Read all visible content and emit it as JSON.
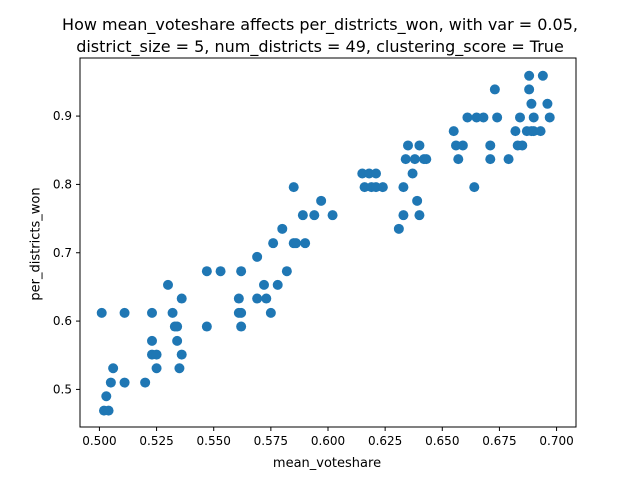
{
  "chart_data": {
    "type": "scatter",
    "title_line1": "How mean_voteshare affects per_districts_won, with var = 0.05,",
    "title_line2": "district_size = 5, num_districts = 49, clustering_score = True",
    "xlabel": "mean_voteshare",
    "ylabel": "per_districts_won",
    "xlim": [
      0.4915,
      0.7085
    ],
    "ylim": [
      0.445,
      0.985
    ],
    "x_ticks": [
      0.5,
      0.525,
      0.55,
      0.575,
      0.6,
      0.625,
      0.65,
      0.675,
      0.7
    ],
    "x_tick_labels": [
      "0.500",
      "0.525",
      "0.550",
      "0.575",
      "0.600",
      "0.625",
      "0.650",
      "0.675",
      "0.700"
    ],
    "y_ticks": [
      0.5,
      0.6,
      0.7,
      0.8,
      0.9
    ],
    "y_tick_labels": [
      "0.5",
      "0.6",
      "0.7",
      "0.8",
      "0.9"
    ],
    "grid": false,
    "marker_color": "#1f77b4",
    "points": [
      {
        "x": 0.501,
        "y": 0.612
      },
      {
        "x": 0.502,
        "y": 0.469
      },
      {
        "x": 0.503,
        "y": 0.49
      },
      {
        "x": 0.504,
        "y": 0.469
      },
      {
        "x": 0.505,
        "y": 0.51
      },
      {
        "x": 0.506,
        "y": 0.531
      },
      {
        "x": 0.511,
        "y": 0.612
      },
      {
        "x": 0.511,
        "y": 0.51
      },
      {
        "x": 0.52,
        "y": 0.51
      },
      {
        "x": 0.523,
        "y": 0.551
      },
      {
        "x": 0.523,
        "y": 0.571
      },
      {
        "x": 0.523,
        "y": 0.612
      },
      {
        "x": 0.525,
        "y": 0.531
      },
      {
        "x": 0.525,
        "y": 0.551
      },
      {
        "x": 0.53,
        "y": 0.653
      },
      {
        "x": 0.532,
        "y": 0.612
      },
      {
        "x": 0.533,
        "y": 0.592
      },
      {
        "x": 0.534,
        "y": 0.571
      },
      {
        "x": 0.534,
        "y": 0.592
      },
      {
        "x": 0.535,
        "y": 0.531
      },
      {
        "x": 0.536,
        "y": 0.551
      },
      {
        "x": 0.536,
        "y": 0.633
      },
      {
        "x": 0.547,
        "y": 0.673
      },
      {
        "x": 0.547,
        "y": 0.592
      },
      {
        "x": 0.553,
        "y": 0.673
      },
      {
        "x": 0.561,
        "y": 0.633
      },
      {
        "x": 0.561,
        "y": 0.612
      },
      {
        "x": 0.562,
        "y": 0.673
      },
      {
        "x": 0.562,
        "y": 0.592
      },
      {
        "x": 0.562,
        "y": 0.612
      },
      {
        "x": 0.569,
        "y": 0.694
      },
      {
        "x": 0.569,
        "y": 0.633
      },
      {
        "x": 0.572,
        "y": 0.653
      },
      {
        "x": 0.573,
        "y": 0.633
      },
      {
        "x": 0.575,
        "y": 0.612
      },
      {
        "x": 0.576,
        "y": 0.714
      },
      {
        "x": 0.578,
        "y": 0.653
      },
      {
        "x": 0.58,
        "y": 0.735
      },
      {
        "x": 0.582,
        "y": 0.673
      },
      {
        "x": 0.585,
        "y": 0.796
      },
      {
        "x": 0.585,
        "y": 0.714
      },
      {
        "x": 0.586,
        "y": 0.714
      },
      {
        "x": 0.589,
        "y": 0.755
      },
      {
        "x": 0.59,
        "y": 0.714
      },
      {
        "x": 0.594,
        "y": 0.755
      },
      {
        "x": 0.597,
        "y": 0.776
      },
      {
        "x": 0.602,
        "y": 0.755
      },
      {
        "x": 0.615,
        "y": 0.816
      },
      {
        "x": 0.616,
        "y": 0.796
      },
      {
        "x": 0.618,
        "y": 0.816
      },
      {
        "x": 0.619,
        "y": 0.796
      },
      {
        "x": 0.621,
        "y": 0.816
      },
      {
        "x": 0.621,
        "y": 0.796
      },
      {
        "x": 0.624,
        "y": 0.796
      },
      {
        "x": 0.631,
        "y": 0.735
      },
      {
        "x": 0.633,
        "y": 0.755
      },
      {
        "x": 0.633,
        "y": 0.796
      },
      {
        "x": 0.634,
        "y": 0.837
      },
      {
        "x": 0.635,
        "y": 0.857
      },
      {
        "x": 0.637,
        "y": 0.816
      },
      {
        "x": 0.638,
        "y": 0.837
      },
      {
        "x": 0.639,
        "y": 0.776
      },
      {
        "x": 0.64,
        "y": 0.857
      },
      {
        "x": 0.64,
        "y": 0.755
      },
      {
        "x": 0.642,
        "y": 0.837
      },
      {
        "x": 0.643,
        "y": 0.837
      },
      {
        "x": 0.655,
        "y": 0.878
      },
      {
        "x": 0.656,
        "y": 0.857
      },
      {
        "x": 0.657,
        "y": 0.837
      },
      {
        "x": 0.659,
        "y": 0.857
      },
      {
        "x": 0.661,
        "y": 0.898
      },
      {
        "x": 0.664,
        "y": 0.796
      },
      {
        "x": 0.665,
        "y": 0.898
      },
      {
        "x": 0.668,
        "y": 0.898
      },
      {
        "x": 0.671,
        "y": 0.857
      },
      {
        "x": 0.671,
        "y": 0.837
      },
      {
        "x": 0.673,
        "y": 0.939
      },
      {
        "x": 0.674,
        "y": 0.898
      },
      {
        "x": 0.679,
        "y": 0.837
      },
      {
        "x": 0.682,
        "y": 0.878
      },
      {
        "x": 0.683,
        "y": 0.857
      },
      {
        "x": 0.684,
        "y": 0.898
      },
      {
        "x": 0.685,
        "y": 0.857
      },
      {
        "x": 0.687,
        "y": 0.878
      },
      {
        "x": 0.688,
        "y": 0.959
      },
      {
        "x": 0.688,
        "y": 0.939
      },
      {
        "x": 0.689,
        "y": 0.918
      },
      {
        "x": 0.689,
        "y": 0.878
      },
      {
        "x": 0.69,
        "y": 0.898
      },
      {
        "x": 0.69,
        "y": 0.878
      },
      {
        "x": 0.693,
        "y": 0.878
      },
      {
        "x": 0.694,
        "y": 0.959
      },
      {
        "x": 0.696,
        "y": 0.918
      },
      {
        "x": 0.697,
        "y": 0.898
      }
    ]
  }
}
